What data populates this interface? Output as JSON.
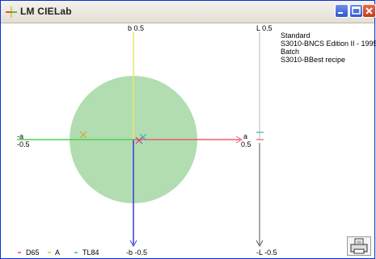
{
  "window": {
    "title": "LM CIELab"
  },
  "axes": {
    "b_top_label": "b 0.5",
    "b_bottom_label": "-b -0.5",
    "a_neg_label": "-a",
    "a_neg_value": "-0.5",
    "a_pos_label": "a",
    "a_pos_value": "0.5",
    "l_top_label": "L 0.5",
    "l_bottom_label": "-L -0.5"
  },
  "info": {
    "standard_heading": "Standard",
    "standard_code": "S3010-B",
    "standard_name": "NCS Edition II - 1995",
    "batch_heading": "Batch",
    "batch_code": "S3010-B",
    "batch_name": "Best recipe"
  },
  "legend": [
    {
      "label": "D65",
      "color": "#e0506a"
    },
    {
      "label": "A",
      "color": "#c8c84a"
    },
    {
      "label": "TL84",
      "color": "#40b0b0"
    }
  ],
  "colors": {
    "circle_fill": "#b1ddb1",
    "b_positive_axis": "#e8e86a",
    "b_negative_axis": "#3a3ae0",
    "a_negative_axis": "#4ed24e",
    "a_positive_axis": "#e8606a",
    "l_positive_axis": "#d0d0d0",
    "l_negative_axis": "#555555"
  },
  "icons": [
    "app-icon",
    "minimize-icon",
    "maximize-icon",
    "close-icon",
    "printer-icon"
  ]
}
